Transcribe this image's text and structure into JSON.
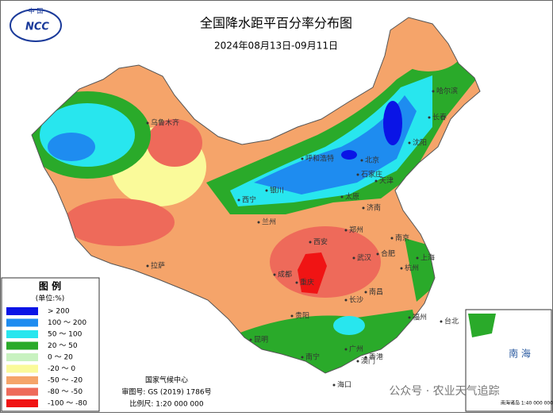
{
  "header": {
    "title": "全国降水距平百分率分布图",
    "subtitle": "2024年08月13日-09月11日"
  },
  "logo": {
    "top": "中 国",
    "text": "NCC"
  },
  "legend": {
    "title": "图 例",
    "unit": "(单位:%)",
    "items": [
      {
        "label": "> 200",
        "color": "#0a14e6"
      },
      {
        "label": "100 ～ 200",
        "color": "#1e8cf0"
      },
      {
        "label": "50 ～ 100",
        "color": "#28e6ee"
      },
      {
        "label": "20 ～ 50",
        "color": "#2aaa2a"
      },
      {
        "label": "0 ～ 20",
        "color": "#c8f2c0"
      },
      {
        "label": "-20 ～ 0",
        "color": "#fafa9a"
      },
      {
        "label": "-50 ～ -20",
        "color": "#f5a46a"
      },
      {
        "label": "-80 ～ -50",
        "color": "#ee6a5a"
      },
      {
        "label": "-100 ～ -80",
        "color": "#f01414"
      }
    ]
  },
  "footer": {
    "org": "国家气候中心",
    "approval": "审图号: GS (2019) 1786号",
    "scale": "比例尺: 1:20 000 000"
  },
  "inset": {
    "label": "南 海",
    "scale": "南海诸岛\n1:40 000 000"
  },
  "watermark": "公众号 · 农业天气追踪",
  "cities": [
    "北京",
    "天津",
    "上海",
    "重庆",
    "成都",
    "西安",
    "武汉",
    "长沙",
    "广州",
    "南宁",
    "昆明",
    "贵阳",
    "拉萨",
    "乌鲁木齐",
    "哈尔滨",
    "长春",
    "沈阳",
    "呼和浩特",
    "太原",
    "石家庄",
    "济南",
    "郑州",
    "合肥",
    "南京",
    "杭州",
    "福州",
    "南昌",
    "台北",
    "香港",
    "澳门",
    "海口",
    "西宁",
    "兰州",
    "银川"
  ]
}
